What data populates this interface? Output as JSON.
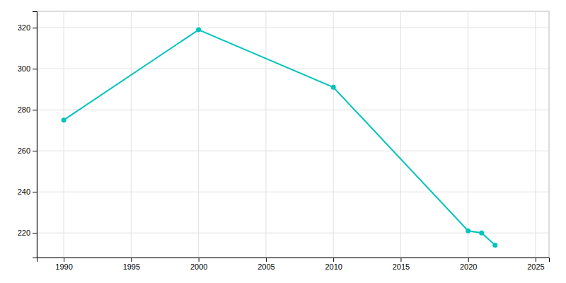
{
  "chart_data": {
    "type": "line",
    "x": [
      1990,
      2000,
      2010,
      2020,
      2021,
      2022
    ],
    "values": [
      275,
      319,
      291,
      221,
      220,
      214
    ],
    "color": "#00C4BC",
    "marker": "circle",
    "xlim": [
      1988,
      2026
    ],
    "ylim": [
      208,
      328
    ],
    "xticks": [
      1990,
      1995,
      2000,
      2005,
      2010,
      2015,
      2020,
      2025
    ],
    "yticks": [
      220,
      240,
      260,
      280,
      300,
      320
    ],
    "grid": true
  }
}
